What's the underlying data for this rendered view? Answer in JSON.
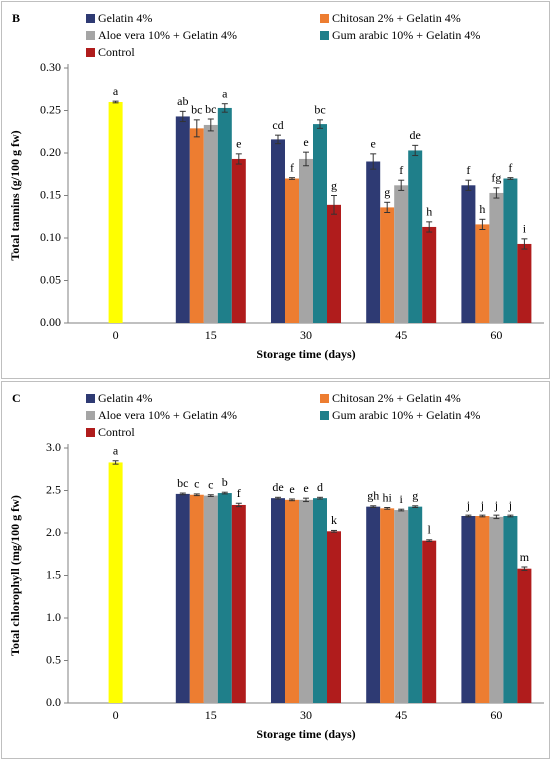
{
  "chart_data": [
    {
      "type": "bar",
      "panel": "B",
      "ylabel": "Total tannins (g/100 g fw)",
      "xlabel": "Storage time (days)",
      "categories": [
        "0",
        "15",
        "30",
        "45",
        "60"
      ],
      "ylim": [
        0,
        0.3
      ],
      "yticks": [
        {
          "value": 0,
          "label": "0.00"
        },
        0.05,
        {
          "value": 0.1,
          "label": "0.10"
        },
        0.15,
        {
          "value": 0.2,
          "label": "0.20"
        },
        0.25,
        {
          "value": 0.3,
          "label": "0.30"
        }
      ],
      "grid": false,
      "initial": {
        "value": 0.26,
        "error": 0.001,
        "label": "a",
        "color": "#ffff00"
      },
      "series": [
        {
          "name": "Gelatin 4%",
          "color": "#2e3a73",
          "values": [
            null,
            0.243,
            0.216,
            0.19,
            0.162
          ],
          "errors": [
            null,
            0.006,
            0.005,
            0.009,
            0.006
          ],
          "letters": [
            null,
            "ab",
            "cd",
            "e",
            "f"
          ]
        },
        {
          "name": "Chitosan 2% + Gelatin 4%",
          "color": "#ed7d31",
          "values": [
            null,
            0.229,
            0.17,
            0.136,
            0.116
          ],
          "errors": [
            null,
            0.01,
            0.001,
            0.006,
            0.006
          ],
          "letters": [
            null,
            "bc",
            "f",
            "g",
            "h"
          ]
        },
        {
          "name": "Aloe vera 10% + Gelatin 4%",
          "color": "#a5a5a5",
          "values": [
            null,
            0.233,
            0.193,
            0.162,
            0.153
          ],
          "errors": [
            null,
            0.007,
            0.008,
            0.006,
            0.006
          ],
          "letters": [
            null,
            "bc",
            "e",
            "f",
            "fg"
          ]
        },
        {
          "name": "Gum arabic 10% + Gelatin 4%",
          "color": "#1f7f8a",
          "values": [
            null,
            0.253,
            0.234,
            0.203,
            0.17
          ],
          "errors": [
            null,
            0.005,
            0.005,
            0.006,
            0.001
          ],
          "letters": [
            null,
            "a",
            "bc",
            "de",
            "f"
          ]
        },
        {
          "name": "Control",
          "color": "#b01c1c",
          "values": [
            null,
            0.193,
            0.139,
            0.113,
            0.093
          ],
          "errors": [
            null,
            0.006,
            0.011,
            0.006,
            0.006
          ],
          "letters": [
            null,
            "e",
            "g",
            "h",
            "i"
          ]
        }
      ]
    },
    {
      "type": "bar",
      "panel": "C",
      "ylabel": "Total chlorophyll (mg/100 g fw)",
      "xlabel": "Storage time (days)",
      "categories": [
        "0",
        "15",
        "30",
        "45",
        "60"
      ],
      "ylim": [
        0,
        3
      ],
      "yticks": [
        {
          "value": 0,
          "label": "0.0"
        },
        0.5,
        {
          "value": 1,
          "label": "1.0"
        },
        1.5,
        {
          "value": 2,
          "label": "2.0"
        },
        2.5,
        {
          "value": 3,
          "label": "3.0"
        }
      ],
      "grid": false,
      "initial": {
        "value": 2.83,
        "error": 0.02,
        "label": "a",
        "color": "#ffff00"
      },
      "series": [
        {
          "name": "Gelatin 4%",
          "color": "#2e3a73",
          "values": [
            null,
            2.46,
            2.41,
            2.31,
            2.2
          ],
          "errors": [
            null,
            0.01,
            0.01,
            0.01,
            0.01
          ],
          "letters": [
            null,
            "bc",
            "de",
            "gh",
            "j"
          ]
        },
        {
          "name": "Chitosan 2% + Gelatin 4%",
          "color": "#ed7d31",
          "values": [
            null,
            2.45,
            2.39,
            2.29,
            2.2
          ],
          "errors": [
            null,
            0.01,
            0.01,
            0.01,
            0.01
          ],
          "letters": [
            null,
            "c",
            "e",
            "hi",
            "j"
          ]
        },
        {
          "name": "Aloe vera 10% + Gelatin 4%",
          "color": "#a5a5a5",
          "values": [
            null,
            2.44,
            2.39,
            2.27,
            2.19
          ],
          "errors": [
            null,
            0.01,
            0.02,
            0.01,
            0.02
          ],
          "letters": [
            null,
            "c",
            "e",
            "i",
            "j"
          ]
        },
        {
          "name": "Gum arabic 10% + Gelatin 4%",
          "color": "#1f7f8a",
          "values": [
            null,
            2.47,
            2.41,
            2.31,
            2.2
          ],
          "errors": [
            null,
            0.01,
            0.01,
            0.01,
            0.01
          ],
          "letters": [
            null,
            "b",
            "d",
            "g",
            "j"
          ]
        },
        {
          "name": "Control",
          "color": "#b01c1c",
          "values": [
            null,
            2.33,
            2.02,
            1.91,
            1.58
          ],
          "errors": [
            null,
            0.02,
            0.01,
            0.01,
            0.02
          ],
          "letters": [
            null,
            "f",
            "k",
            "l",
            "m"
          ]
        }
      ]
    }
  ]
}
